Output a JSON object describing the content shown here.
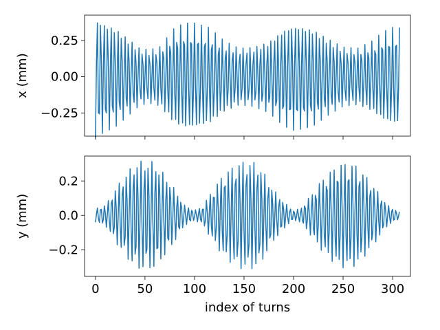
{
  "chart_data": [
    {
      "type": "line",
      "title": "",
      "xlabel": "",
      "ylabel": "x (mm)",
      "xlim": [
        -11,
        318
      ],
      "ylim": [
        -0.41,
        0.425
      ],
      "xticks": [
        0,
        50,
        100,
        150,
        200,
        250,
        300
      ],
      "xtick_labels": [
        "",
        "",
        "",
        "",
        "",
        "",
        ""
      ],
      "yticks": [
        -0.25,
        0.0,
        0.25
      ],
      "ytick_labels": [
        "−0.25",
        "0.00",
        "0.25"
      ],
      "grid": false,
      "series": [
        {
          "color": "#1f77b4",
          "x_start": 0,
          "x_end": 307,
          "x_step": 1,
          "amplitude_envelope": {
            "x": [
              0,
              2,
              10,
              20,
              35,
              45,
              55,
              65,
              80,
              90,
              100,
              115,
              130,
              145,
              160,
              175,
              190,
              200,
              210,
              220,
              235,
              250,
              265,
              280,
              290,
              300,
              307
            ],
            "max": [
              0.42,
              0.41,
              0.38,
              0.35,
              0.26,
              0.2,
              0.19,
              0.21,
              0.34,
              0.37,
              0.37,
              0.34,
              0.25,
              0.2,
              0.21,
              0.25,
              0.34,
              0.37,
              0.36,
              0.34,
              0.27,
              0.21,
              0.2,
              0.25,
              0.31,
              0.34,
              0.34
            ]
          },
          "tune": 0.285
        }
      ]
    },
    {
      "type": "line",
      "title": "",
      "xlabel": "index of turns",
      "ylabel": "y (mm)",
      "xlim": [
        -11,
        318
      ],
      "ylim": [
        -0.355,
        0.345
      ],
      "xticks": [
        0,
        50,
        100,
        150,
        200,
        250,
        300
      ],
      "xtick_labels": [
        "0",
        "50",
        "100",
        "150",
        "200",
        "250",
        "300"
      ],
      "yticks": [
        -0.2,
        0.0,
        0.2
      ],
      "ytick_labels": [
        "−0.2",
        "0.0",
        "0.2"
      ],
      "grid": false,
      "series": [
        {
          "color": "#1f77b4",
          "x_start": 0,
          "x_end": 307,
          "x_step": 1,
          "amplitude_envelope": {
            "x": [
              0,
              10,
              25,
              40,
              50,
              60,
              75,
              90,
              100,
              108,
              115,
              130,
              145,
              155,
              165,
              180,
              195,
              200,
              207,
              215,
              230,
              245,
              255,
              265,
              280,
              295,
              307
            ],
            "max": [
              0.04,
              0.06,
              0.2,
              0.31,
              0.32,
              0.31,
              0.2,
              0.06,
              0.03,
              0.05,
              0.12,
              0.25,
              0.31,
              0.32,
              0.3,
              0.15,
              0.05,
              0.03,
              0.04,
              0.1,
              0.22,
              0.3,
              0.31,
              0.29,
              0.18,
              0.06,
              0.02
            ]
          },
          "tune": 0.272
        }
      ]
    }
  ]
}
